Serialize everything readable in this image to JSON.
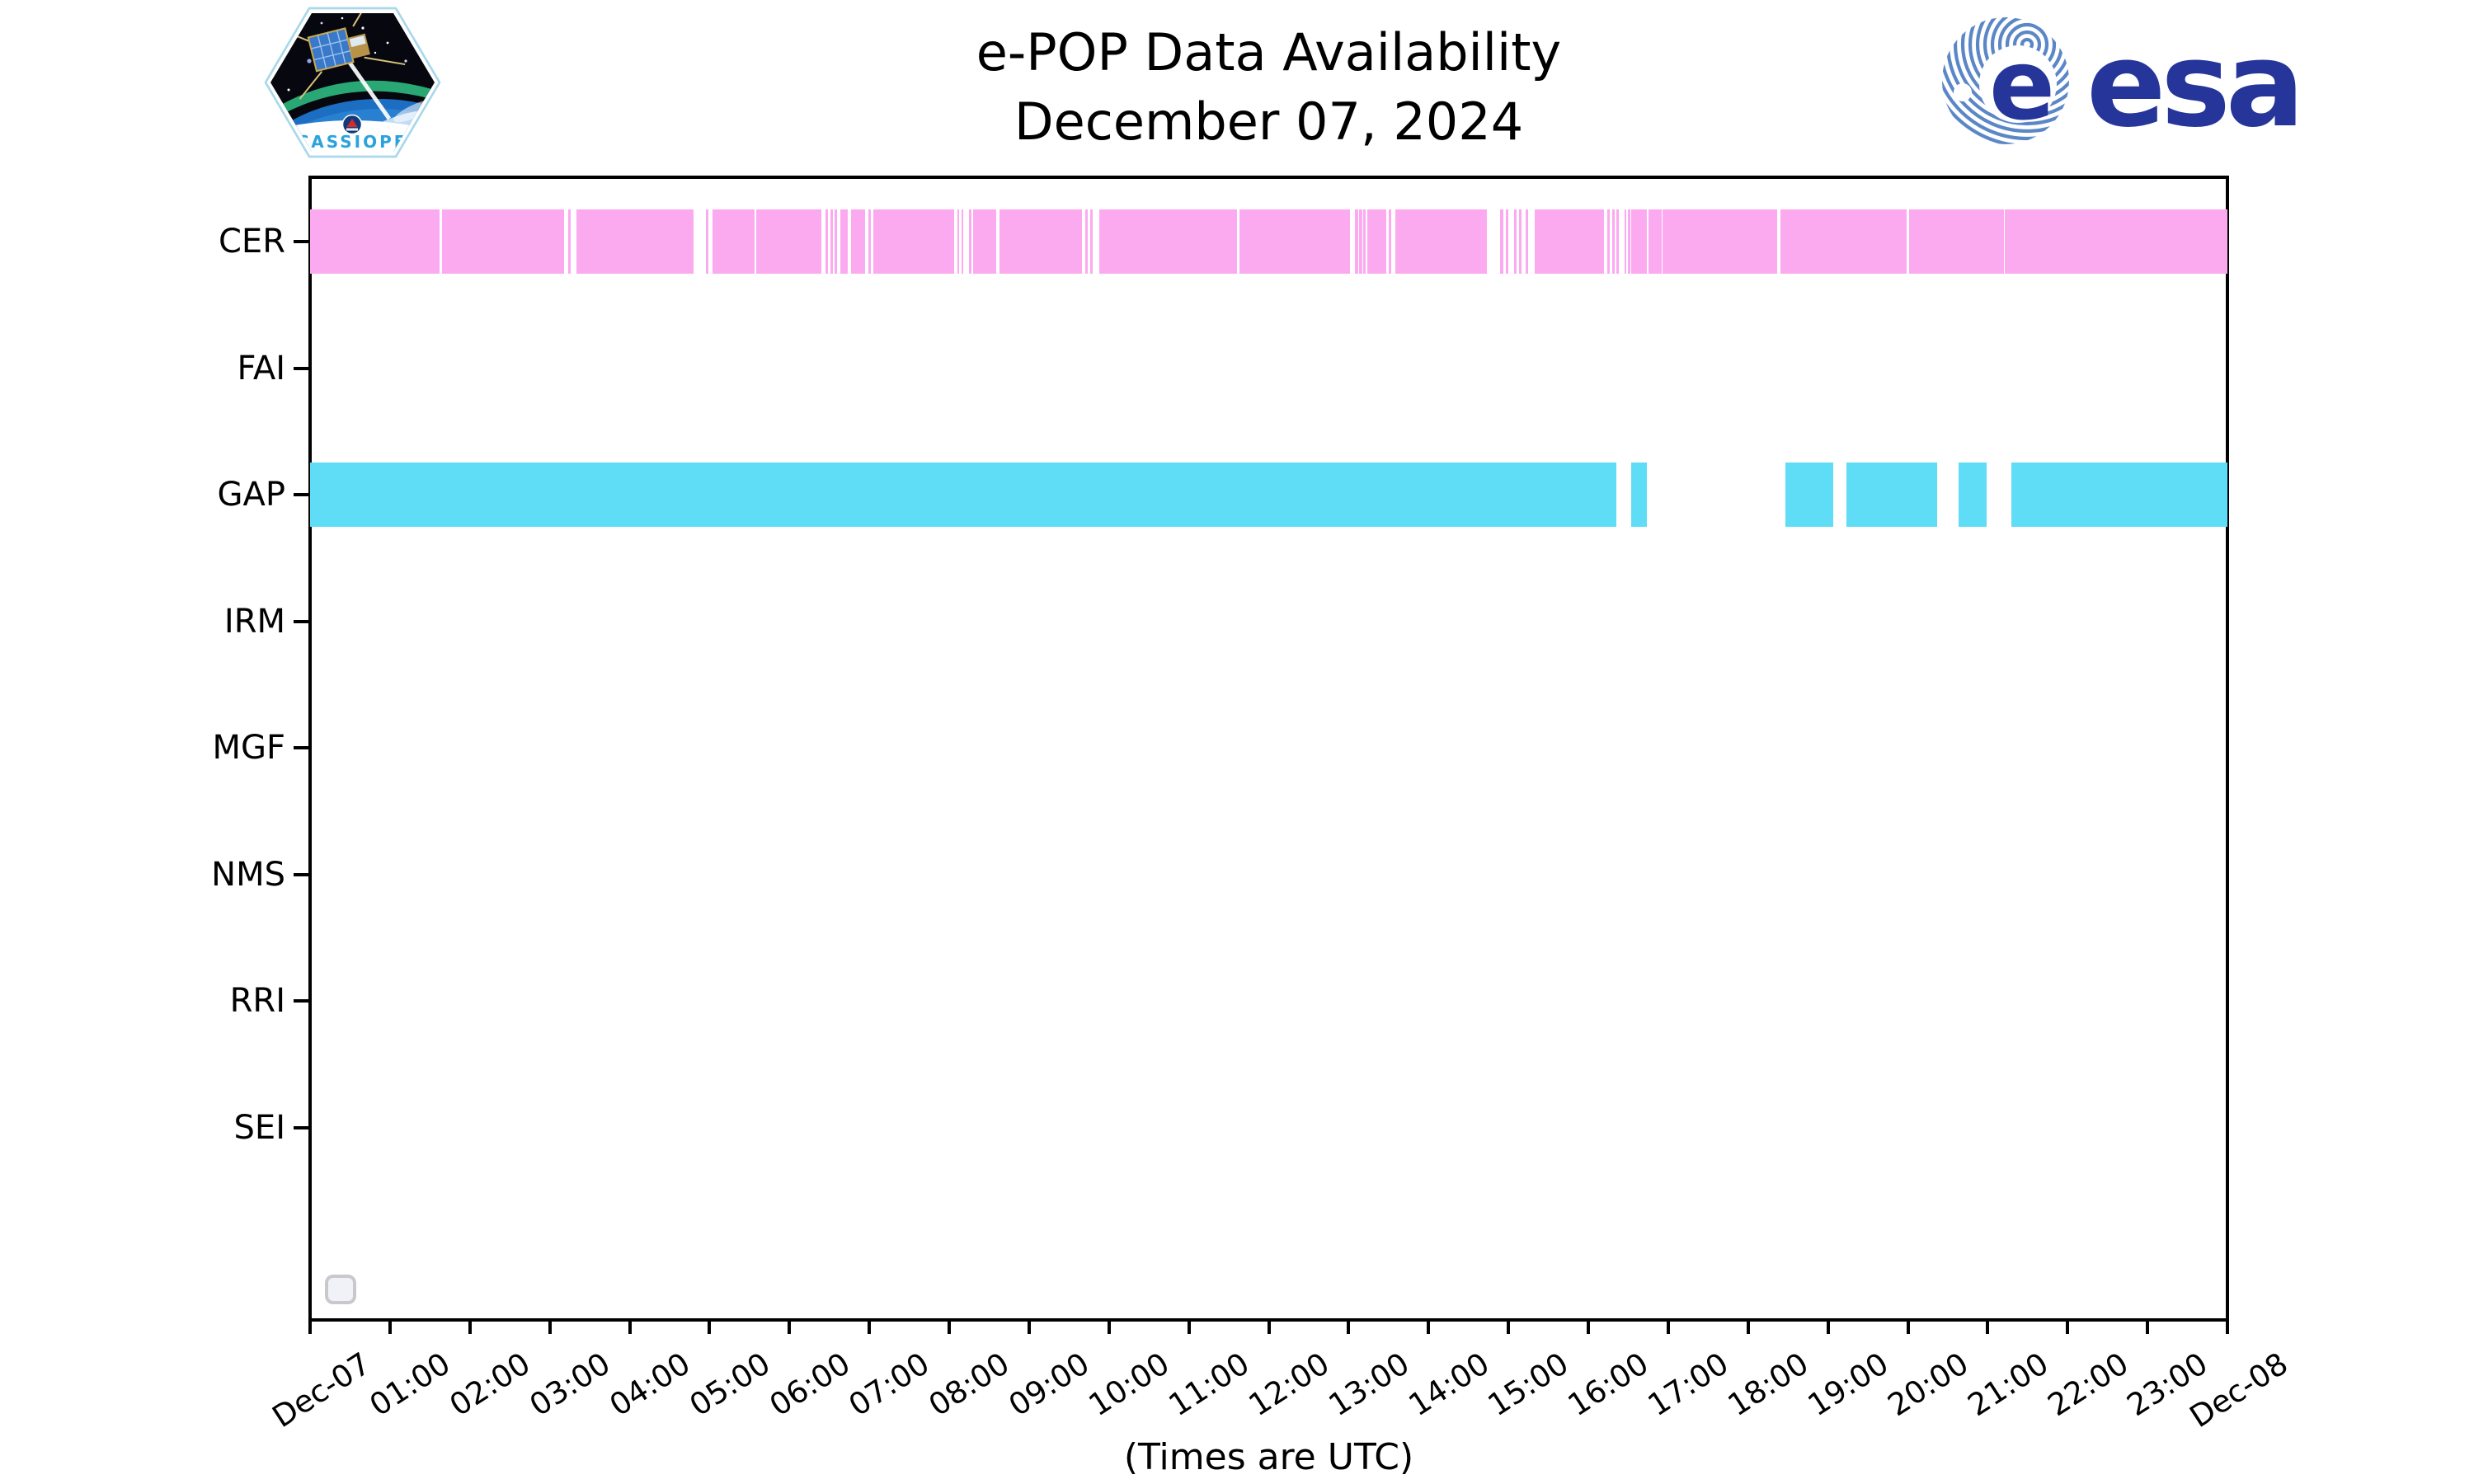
{
  "header": {
    "title_line1": "e-POP Data Availability",
    "title_line2": "December 07, 2024"
  },
  "footer_caption": "(Times are UTC)",
  "logos": {
    "cassiope_text": "CASSIOPE",
    "esa_text": "esa"
  },
  "chart_data": {
    "type": "timeline",
    "title": "e-POP Data Availability",
    "subtitle": "December 07, 2024",
    "xlabel": "(Times are UTC)",
    "x_axis": {
      "range_hours": [
        0,
        24
      ],
      "start_tick_label": "Dec-07",
      "end_tick_label": "Dec-08",
      "hour_tick_labels": [
        "01:00",
        "02:00",
        "03:00",
        "04:00",
        "05:00",
        "06:00",
        "07:00",
        "08:00",
        "09:00",
        "10:00",
        "11:00",
        "12:00",
        "13:00",
        "14:00",
        "15:00",
        "16:00",
        "17:00",
        "18:00",
        "19:00",
        "20:00",
        "21:00",
        "22:00",
        "23:00"
      ]
    },
    "y_axis": {
      "instruments": [
        "CER",
        "FAI",
        "GAP",
        "IRM",
        "MGF",
        "NMS",
        "RRI",
        "SEI"
      ]
    },
    "legend": {
      "visible": true,
      "entries": []
    },
    "colors": {
      "CER": "#FCAAF0",
      "GAP": "#5FDDF6"
    },
    "series": [
      {
        "name": "CER",
        "color": "#FCAAF0",
        "intervals_min": [
          [
            0,
            97
          ],
          [
            99,
            191
          ],
          [
            194,
            196
          ],
          [
            200,
            288
          ],
          [
            297,
            299
          ],
          [
            302,
            334
          ],
          [
            335,
            384
          ],
          [
            387,
            389
          ],
          [
            391,
            392
          ],
          [
            394,
            395
          ],
          [
            398,
            404
          ],
          [
            406,
            417
          ],
          [
            419,
            421
          ],
          [
            423,
            484
          ],
          [
            486,
            487
          ],
          [
            489,
            490
          ],
          [
            495,
            497
          ],
          [
            498,
            515
          ],
          [
            518,
            580
          ],
          [
            582,
            584
          ],
          [
            586,
            588
          ],
          [
            593,
            696
          ],
          [
            698,
            781
          ],
          [
            785,
            787
          ],
          [
            788,
            790
          ],
          [
            791,
            793
          ],
          [
            794,
            808
          ],
          [
            810,
            812
          ],
          [
            815,
            884
          ],
          [
            894,
            896
          ],
          [
            898,
            900
          ],
          [
            904,
            906
          ],
          [
            908,
            910
          ],
          [
            913,
            915
          ],
          [
            920,
            972
          ],
          [
            974,
            976
          ],
          [
            978,
            980
          ],
          [
            981,
            983
          ],
          [
            987,
            988
          ],
          [
            990,
            991
          ],
          [
            992,
            1004
          ],
          [
            1005,
            1015
          ],
          [
            1016,
            1102
          ],
          [
            1104,
            1199
          ],
          [
            1201,
            1272
          ],
          [
            1273,
            1440
          ]
        ]
      },
      {
        "name": "FAI",
        "color": null,
        "intervals_min": []
      },
      {
        "name": "GAP",
        "color": "#5FDDF6",
        "intervals_min": [
          [
            0,
            981
          ],
          [
            992,
            1004
          ],
          [
            1108,
            1144
          ],
          [
            1154,
            1222
          ],
          [
            1238,
            1259
          ],
          [
            1278,
            1440
          ]
        ]
      },
      {
        "name": "IRM",
        "color": null,
        "intervals_min": []
      },
      {
        "name": "MGF",
        "color": null,
        "intervals_min": []
      },
      {
        "name": "NMS",
        "color": null,
        "intervals_min": []
      },
      {
        "name": "RRI",
        "color": null,
        "intervals_min": []
      },
      {
        "name": "SEI",
        "color": null,
        "intervals_min": []
      }
    ]
  }
}
